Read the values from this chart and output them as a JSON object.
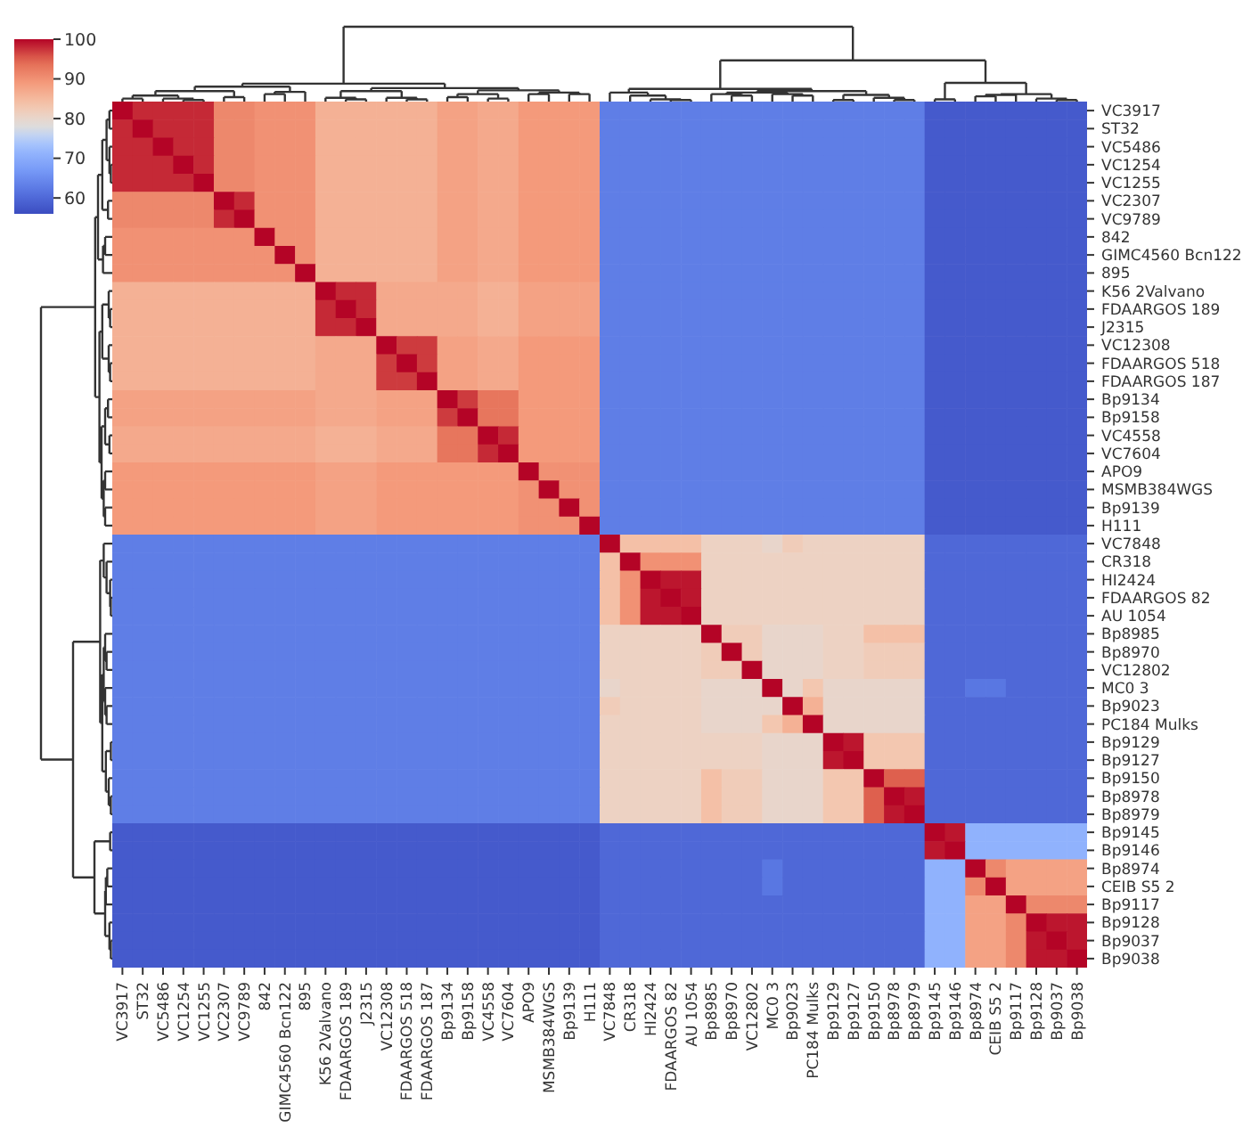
{
  "chart_data": {
    "type": "heatmap",
    "categories": [
      "VC3917",
      "ST32",
      "VC5486",
      "VC1254",
      "VC1255",
      "VC2307",
      "VC9789",
      "842",
      "GIMC4560 Bcn122",
      "895",
      "K56 2Valvano",
      "FDAARGOS 189",
      "J2315",
      "VC12308",
      "FDAARGOS 518",
      "FDAARGOS 187",
      "Bp9134",
      "Bp9158",
      "VC4558",
      "VC7604",
      "APO9",
      "MSMB384WGS",
      "Bp9139",
      "H111",
      "VC7848",
      "CR318",
      "HI2424",
      "FDAARGOS 82",
      "AU 1054",
      "Bp8985",
      "Bp8970",
      "VC12802",
      "MC0 3",
      "Bp9023",
      "PC184 Mulks",
      "Bp9129",
      "Bp9127",
      "Bp9150",
      "Bp8978",
      "Bp8979",
      "Bp9145",
      "Bp9146",
      "Bp8974",
      "CEIB S5 2",
      "Bp9117",
      "Bp9128",
      "Bp9037",
      "Bp9038"
    ],
    "y_categories": [
      "VC3917",
      "ST32",
      "VC5486",
      "VC1254",
      "VC1255",
      "VC2307",
      "VC9789",
      "842",
      "GIMC4560 Bcn122",
      "895",
      "K56 2Valvano",
      "FDAARGOS 189",
      "J2315",
      "VC12308",
      "FDAARGOS 518",
      "FDAARGOS 187",
      "Bp9134",
      "Bp9158",
      "VC4558",
      "VC7604",
      "APO9",
      "MSMB384WGS",
      "Bp9139",
      "H111",
      "VC7848",
      "CR318",
      "HI2424",
      "FDAARGOS 82",
      "AU 1054",
      "Bp8985",
      "Bp8970",
      "VC12802",
      "MC0 3",
      "Bp9023",
      "PC184 Mulks",
      "Bp9129",
      "Bp9127",
      "Bp9150",
      "Bp8978",
      "Bp8979",
      "Bp9145",
      "Bp9146",
      "Bp8974",
      "CEIB S5 2",
      "Bp9117",
      "Bp9128",
      "Bp9037",
      "Bp9038"
    ],
    "clim": [
      56,
      100
    ],
    "cticks": [
      60,
      70,
      80,
      90,
      100
    ],
    "cells": [
      [
        100,
        98,
        98,
        98,
        98,
        91,
        91,
        90,
        90,
        90,
        86,
        86,
        86,
        86,
        86,
        86,
        88,
        88,
        87,
        87,
        89,
        89,
        89,
        89,
        63,
        63,
        63,
        63,
        63,
        63,
        63,
        63,
        63,
        63,
        63,
        63,
        63,
        63,
        63,
        63,
        58,
        58,
        58,
        58,
        58,
        58,
        58,
        58
      ],
      [
        98,
        100,
        98,
        98,
        98,
        91,
        91,
        90,
        90,
        90,
        86,
        86,
        86,
        86,
        86,
        86,
        88,
        88,
        87,
        87,
        89,
        89,
        89,
        89,
        63,
        63,
        63,
        63,
        63,
        63,
        63,
        63,
        63,
        63,
        63,
        63,
        63,
        63,
        63,
        63,
        58,
        58,
        58,
        58,
        58,
        58,
        58,
        58
      ],
      [
        98,
        98,
        100,
        98,
        98,
        91,
        91,
        90,
        90,
        90,
        86,
        86,
        86,
        86,
        86,
        86,
        88,
        88,
        87,
        87,
        89,
        89,
        89,
        89,
        63,
        63,
        63,
        63,
        63,
        63,
        63,
        63,
        63,
        63,
        63,
        63,
        63,
        63,
        63,
        63,
        58,
        58,
        58,
        58,
        58,
        58,
        58,
        58
      ],
      [
        98,
        98,
        98,
        100,
        98,
        91,
        91,
        90,
        90,
        90,
        86,
        86,
        86,
        86,
        86,
        86,
        88,
        88,
        87,
        87,
        89,
        89,
        89,
        89,
        63,
        63,
        63,
        63,
        63,
        63,
        63,
        63,
        63,
        63,
        63,
        63,
        63,
        63,
        63,
        63,
        58,
        58,
        58,
        58,
        58,
        58,
        58,
        58
      ],
      [
        98,
        98,
        98,
        98,
        100,
        91,
        91,
        90,
        90,
        90,
        86,
        86,
        86,
        86,
        86,
        86,
        88,
        88,
        87,
        87,
        89,
        89,
        89,
        89,
        63,
        63,
        63,
        63,
        63,
        63,
        63,
        63,
        63,
        63,
        63,
        63,
        63,
        63,
        63,
        63,
        58,
        58,
        58,
        58,
        58,
        58,
        58,
        58
      ],
      [
        91,
        91,
        91,
        91,
        91,
        100,
        98,
        90,
        90,
        90,
        86,
        86,
        86,
        86,
        86,
        86,
        88,
        88,
        87,
        87,
        89,
        89,
        89,
        89,
        63,
        63,
        63,
        63,
        63,
        63,
        63,
        63,
        63,
        63,
        63,
        63,
        63,
        63,
        63,
        63,
        58,
        58,
        58,
        58,
        58,
        58,
        58,
        58
      ],
      [
        91,
        91,
        91,
        91,
        91,
        98,
        100,
        90,
        90,
        90,
        86,
        86,
        86,
        86,
        86,
        86,
        88,
        88,
        87,
        87,
        89,
        89,
        89,
        89,
        63,
        63,
        63,
        63,
        63,
        63,
        63,
        63,
        63,
        63,
        63,
        63,
        63,
        63,
        63,
        63,
        58,
        58,
        58,
        58,
        58,
        58,
        58,
        58
      ],
      [
        90,
        90,
        90,
        90,
        90,
        90,
        90,
        100,
        90,
        90,
        86,
        86,
        86,
        86,
        86,
        86,
        88,
        88,
        87,
        87,
        89,
        89,
        89,
        89,
        63,
        63,
        63,
        63,
        63,
        63,
        63,
        63,
        63,
        63,
        63,
        63,
        63,
        63,
        63,
        63,
        58,
        58,
        58,
        58,
        58,
        58,
        58,
        58
      ],
      [
        90,
        90,
        90,
        90,
        90,
        90,
        90,
        90,
        100,
        90,
        86,
        86,
        86,
        86,
        86,
        86,
        88,
        88,
        87,
        87,
        89,
        89,
        89,
        89,
        63,
        63,
        63,
        63,
        63,
        63,
        63,
        63,
        63,
        63,
        63,
        63,
        63,
        63,
        63,
        63,
        58,
        58,
        58,
        58,
        58,
        58,
        58,
        58
      ],
      [
        90,
        90,
        90,
        90,
        90,
        90,
        90,
        90,
        90,
        100,
        86,
        86,
        86,
        86,
        86,
        86,
        88,
        88,
        87,
        87,
        89,
        89,
        89,
        89,
        63,
        63,
        63,
        63,
        63,
        63,
        63,
        63,
        63,
        63,
        63,
        63,
        63,
        63,
        63,
        63,
        58,
        58,
        58,
        58,
        58,
        58,
        58,
        58
      ],
      [
        86,
        86,
        86,
        86,
        86,
        86,
        86,
        86,
        86,
        86,
        100,
        98,
        98,
        87,
        87,
        87,
        87,
        87,
        86,
        86,
        88,
        88,
        88,
        88,
        63,
        63,
        63,
        63,
        63,
        63,
        63,
        63,
        63,
        63,
        63,
        63,
        63,
        63,
        63,
        63,
        58,
        58,
        58,
        58,
        58,
        58,
        58,
        58
      ],
      [
        86,
        86,
        86,
        86,
        86,
        86,
        86,
        86,
        86,
        86,
        98,
        100,
        98,
        87,
        87,
        87,
        87,
        87,
        86,
        86,
        88,
        88,
        88,
        88,
        63,
        63,
        63,
        63,
        63,
        63,
        63,
        63,
        63,
        63,
        63,
        63,
        63,
        63,
        63,
        63,
        58,
        58,
        58,
        58,
        58,
        58,
        58,
        58
      ],
      [
        86,
        86,
        86,
        86,
        86,
        86,
        86,
        86,
        86,
        86,
        98,
        98,
        100,
        87,
        87,
        87,
        87,
        87,
        86,
        86,
        88,
        88,
        88,
        88,
        63,
        63,
        63,
        63,
        63,
        63,
        63,
        63,
        63,
        63,
        63,
        63,
        63,
        63,
        63,
        63,
        58,
        58,
        58,
        58,
        58,
        58,
        58,
        58
      ],
      [
        86,
        86,
        86,
        86,
        86,
        86,
        86,
        86,
        86,
        86,
        87,
        87,
        87,
        100,
        97,
        97,
        88,
        88,
        87,
        87,
        89,
        89,
        89,
        89,
        63,
        63,
        63,
        63,
        63,
        63,
        63,
        63,
        63,
        63,
        63,
        63,
        63,
        63,
        63,
        63,
        58,
        58,
        58,
        58,
        58,
        58,
        58,
        58
      ],
      [
        86,
        86,
        86,
        86,
        86,
        86,
        86,
        86,
        86,
        86,
        87,
        87,
        87,
        97,
        100,
        97,
        88,
        88,
        87,
        87,
        89,
        89,
        89,
        89,
        63,
        63,
        63,
        63,
        63,
        63,
        63,
        63,
        63,
        63,
        63,
        63,
        63,
        63,
        63,
        63,
        58,
        58,
        58,
        58,
        58,
        58,
        58,
        58
      ],
      [
        86,
        86,
        86,
        86,
        86,
        86,
        86,
        86,
        86,
        86,
        87,
        87,
        87,
        97,
        97,
        100,
        88,
        88,
        87,
        87,
        89,
        89,
        89,
        89,
        63,
        63,
        63,
        63,
        63,
        63,
        63,
        63,
        63,
        63,
        63,
        63,
        63,
        63,
        63,
        63,
        58,
        58,
        58,
        58,
        58,
        58,
        58,
        58
      ],
      [
        88,
        88,
        88,
        88,
        88,
        88,
        88,
        88,
        88,
        88,
        87,
        87,
        87,
        88,
        88,
        88,
        100,
        97,
        93,
        93,
        89,
        89,
        89,
        89,
        63,
        63,
        63,
        63,
        63,
        63,
        63,
        63,
        63,
        63,
        63,
        63,
        63,
        63,
        63,
        63,
        58,
        58,
        58,
        58,
        58,
        58,
        58,
        58
      ],
      [
        88,
        88,
        88,
        88,
        88,
        88,
        88,
        88,
        88,
        88,
        87,
        87,
        87,
        88,
        88,
        88,
        97,
        100,
        93,
        93,
        89,
        89,
        89,
        89,
        63,
        63,
        63,
        63,
        63,
        63,
        63,
        63,
        63,
        63,
        63,
        63,
        63,
        63,
        63,
        63,
        58,
        58,
        58,
        58,
        58,
        58,
        58,
        58
      ],
      [
        87,
        87,
        87,
        87,
        87,
        87,
        87,
        87,
        87,
        87,
        86,
        86,
        86,
        87,
        87,
        87,
        93,
        93,
        100,
        98,
        89,
        89,
        89,
        89,
        63,
        63,
        63,
        63,
        63,
        63,
        63,
        63,
        63,
        63,
        63,
        63,
        63,
        63,
        63,
        63,
        58,
        58,
        58,
        58,
        58,
        58,
        58,
        58
      ],
      [
        87,
        87,
        87,
        87,
        87,
        87,
        87,
        87,
        87,
        87,
        86,
        86,
        86,
        87,
        87,
        87,
        93,
        93,
        98,
        100,
        89,
        89,
        89,
        89,
        63,
        63,
        63,
        63,
        63,
        63,
        63,
        63,
        63,
        63,
        63,
        63,
        63,
        63,
        63,
        63,
        58,
        58,
        58,
        58,
        58,
        58,
        58,
        58
      ],
      [
        89,
        89,
        89,
        89,
        89,
        89,
        89,
        89,
        89,
        89,
        88,
        88,
        88,
        89,
        89,
        89,
        89,
        89,
        89,
        89,
        100,
        90,
        90,
        90,
        63,
        63,
        63,
        63,
        63,
        63,
        63,
        63,
        63,
        63,
        63,
        63,
        63,
        63,
        63,
        63,
        58,
        58,
        58,
        58,
        58,
        58,
        58,
        58
      ],
      [
        89,
        89,
        89,
        89,
        89,
        89,
        89,
        89,
        89,
        89,
        88,
        88,
        88,
        89,
        89,
        89,
        89,
        89,
        89,
        89,
        90,
        100,
        90,
        90,
        63,
        63,
        63,
        63,
        63,
        63,
        63,
        63,
        63,
        63,
        63,
        63,
        63,
        63,
        63,
        63,
        58,
        58,
        58,
        58,
        58,
        58,
        58,
        58
      ],
      [
        89,
        89,
        89,
        89,
        89,
        89,
        89,
        89,
        89,
        89,
        88,
        88,
        88,
        89,
        89,
        89,
        89,
        89,
        89,
        89,
        90,
        90,
        100,
        90,
        63,
        63,
        63,
        63,
        63,
        63,
        63,
        63,
        63,
        63,
        63,
        63,
        63,
        63,
        63,
        63,
        58,
        58,
        58,
        58,
        58,
        58,
        58,
        58
      ],
      [
        89,
        89,
        89,
        89,
        89,
        89,
        89,
        89,
        89,
        89,
        88,
        88,
        88,
        89,
        89,
        89,
        89,
        89,
        89,
        89,
        90,
        90,
        90,
        100,
        63,
        63,
        63,
        63,
        63,
        63,
        63,
        63,
        63,
        63,
        63,
        63,
        63,
        63,
        63,
        63,
        58,
        58,
        58,
        58,
        58,
        58,
        58,
        58
      ],
      [
        63,
        63,
        63,
        63,
        63,
        63,
        63,
        63,
        63,
        63,
        63,
        63,
        63,
        63,
        63,
        63,
        63,
        63,
        63,
        63,
        63,
        63,
        63,
        63,
        100,
        84,
        84,
        84,
        84,
        81,
        81,
        81,
        80,
        82,
        81,
        81,
        81,
        81,
        81,
        81,
        60,
        60,
        60,
        60,
        60,
        60,
        60,
        60
      ],
      [
        63,
        63,
        63,
        63,
        63,
        63,
        63,
        63,
        63,
        63,
        63,
        63,
        63,
        63,
        63,
        63,
        63,
        63,
        63,
        63,
        63,
        63,
        63,
        63,
        84,
        100,
        90,
        90,
        90,
        81,
        81,
        81,
        81,
        81,
        81,
        81,
        81,
        81,
        81,
        81,
        60,
        60,
        60,
        60,
        60,
        60,
        60,
        60
      ],
      [
        63,
        63,
        63,
        63,
        63,
        63,
        63,
        63,
        63,
        63,
        63,
        63,
        63,
        63,
        63,
        63,
        63,
        63,
        63,
        63,
        63,
        63,
        63,
        63,
        84,
        90,
        100,
        99,
        99,
        81,
        81,
        81,
        81,
        81,
        81,
        81,
        81,
        81,
        81,
        81,
        60,
        60,
        60,
        60,
        60,
        60,
        60,
        60
      ],
      [
        63,
        63,
        63,
        63,
        63,
        63,
        63,
        63,
        63,
        63,
        63,
        63,
        63,
        63,
        63,
        63,
        63,
        63,
        63,
        63,
        63,
        63,
        63,
        63,
        84,
        90,
        99,
        100,
        99,
        81,
        81,
        81,
        81,
        81,
        81,
        81,
        81,
        81,
        81,
        81,
        60,
        60,
        60,
        60,
        60,
        60,
        60,
        60
      ],
      [
        63,
        63,
        63,
        63,
        63,
        63,
        63,
        63,
        63,
        63,
        63,
        63,
        63,
        63,
        63,
        63,
        63,
        63,
        63,
        63,
        63,
        63,
        63,
        63,
        84,
        90,
        99,
        99,
        100,
        81,
        81,
        81,
        81,
        81,
        81,
        81,
        81,
        81,
        81,
        81,
        60,
        60,
        60,
        60,
        60,
        60,
        60,
        60
      ],
      [
        63,
        63,
        63,
        63,
        63,
        63,
        63,
        63,
        63,
        63,
        63,
        63,
        63,
        63,
        63,
        63,
        63,
        63,
        63,
        63,
        63,
        63,
        63,
        63,
        81,
        81,
        81,
        81,
        81,
        100,
        82,
        82,
        80,
        80,
        80,
        81,
        81,
        84,
        84,
        84,
        60,
        60,
        60,
        60,
        60,
        60,
        60,
        60
      ],
      [
        63,
        63,
        63,
        63,
        63,
        63,
        63,
        63,
        63,
        63,
        63,
        63,
        63,
        63,
        63,
        63,
        63,
        63,
        63,
        63,
        63,
        63,
        63,
        63,
        81,
        81,
        81,
        81,
        81,
        82,
        100,
        82,
        80,
        80,
        80,
        81,
        81,
        82,
        82,
        82,
        60,
        60,
        60,
        60,
        60,
        60,
        60,
        60
      ],
      [
        63,
        63,
        63,
        63,
        63,
        63,
        63,
        63,
        63,
        63,
        63,
        63,
        63,
        63,
        63,
        63,
        63,
        63,
        63,
        63,
        63,
        63,
        63,
        63,
        81,
        81,
        81,
        81,
        81,
        82,
        82,
        100,
        80,
        80,
        80,
        81,
        81,
        82,
        82,
        82,
        60,
        60,
        60,
        60,
        60,
        60,
        60,
        60
      ],
      [
        63,
        63,
        63,
        63,
        63,
        63,
        63,
        63,
        63,
        63,
        63,
        63,
        63,
        63,
        63,
        63,
        63,
        63,
        63,
        63,
        63,
        63,
        63,
        63,
        80,
        81,
        81,
        81,
        81,
        80,
        80,
        80,
        100,
        80,
        83,
        80,
        80,
        80,
        80,
        80,
        60,
        60,
        62,
        62,
        60,
        60,
        60,
        60
      ],
      [
        63,
        63,
        63,
        63,
        63,
        63,
        63,
        63,
        63,
        63,
        63,
        63,
        63,
        63,
        63,
        63,
        63,
        63,
        63,
        63,
        63,
        63,
        63,
        63,
        82,
        81,
        81,
        81,
        81,
        80,
        80,
        80,
        80,
        100,
        86,
        80,
        80,
        80,
        80,
        80,
        60,
        60,
        60,
        60,
        60,
        60,
        60,
        60
      ],
      [
        63,
        63,
        63,
        63,
        63,
        63,
        63,
        63,
        63,
        63,
        63,
        63,
        63,
        63,
        63,
        63,
        63,
        63,
        63,
        63,
        63,
        63,
        63,
        63,
        81,
        81,
        81,
        81,
        81,
        80,
        80,
        80,
        83,
        86,
        100,
        80,
        80,
        80,
        80,
        80,
        60,
        60,
        60,
        60,
        60,
        60,
        60,
        60
      ],
      [
        63,
        63,
        63,
        63,
        63,
        63,
        63,
        63,
        63,
        63,
        63,
        63,
        63,
        63,
        63,
        63,
        63,
        63,
        63,
        63,
        63,
        63,
        63,
        63,
        81,
        81,
        81,
        81,
        81,
        81,
        81,
        81,
        80,
        80,
        80,
        100,
        99,
        83,
        83,
        83,
        60,
        60,
        60,
        60,
        60,
        60,
        60,
        60
      ],
      [
        63,
        63,
        63,
        63,
        63,
        63,
        63,
        63,
        63,
        63,
        63,
        63,
        63,
        63,
        63,
        63,
        63,
        63,
        63,
        63,
        63,
        63,
        63,
        63,
        81,
        81,
        81,
        81,
        81,
        81,
        81,
        81,
        80,
        80,
        80,
        99,
        100,
        83,
        83,
        83,
        60,
        60,
        60,
        60,
        60,
        60,
        60,
        60
      ],
      [
        63,
        63,
        63,
        63,
        63,
        63,
        63,
        63,
        63,
        63,
        63,
        63,
        63,
        63,
        63,
        63,
        63,
        63,
        63,
        63,
        63,
        63,
        63,
        63,
        81,
        81,
        81,
        81,
        81,
        84,
        82,
        82,
        80,
        80,
        80,
        83,
        83,
        100,
        95,
        95,
        60,
        60,
        60,
        60,
        60,
        60,
        60,
        60
      ],
      [
        63,
        63,
        63,
        63,
        63,
        63,
        63,
        63,
        63,
        63,
        63,
        63,
        63,
        63,
        63,
        63,
        63,
        63,
        63,
        63,
        63,
        63,
        63,
        63,
        81,
        81,
        81,
        81,
        81,
        84,
        82,
        82,
        80,
        80,
        80,
        83,
        83,
        95,
        100,
        99,
        60,
        60,
        60,
        60,
        60,
        60,
        60,
        60
      ],
      [
        63,
        63,
        63,
        63,
        63,
        63,
        63,
        63,
        63,
        63,
        63,
        63,
        63,
        63,
        63,
        63,
        63,
        63,
        63,
        63,
        63,
        63,
        63,
        63,
        81,
        81,
        81,
        81,
        81,
        84,
        82,
        82,
        80,
        80,
        80,
        83,
        83,
        95,
        99,
        100,
        60,
        60,
        60,
        60,
        60,
        60,
        60,
        60
      ],
      [
        58,
        58,
        58,
        58,
        58,
        58,
        58,
        58,
        58,
        58,
        58,
        58,
        58,
        58,
        58,
        58,
        58,
        58,
        58,
        58,
        58,
        58,
        58,
        58,
        60,
        60,
        60,
        60,
        60,
        60,
        60,
        60,
        60,
        60,
        60,
        60,
        60,
        60,
        60,
        60,
        100,
        99,
        71,
        71,
        71,
        71,
        71,
        71
      ],
      [
        58,
        58,
        58,
        58,
        58,
        58,
        58,
        58,
        58,
        58,
        58,
        58,
        58,
        58,
        58,
        58,
        58,
        58,
        58,
        58,
        58,
        58,
        58,
        58,
        60,
        60,
        60,
        60,
        60,
        60,
        60,
        60,
        60,
        60,
        60,
        60,
        60,
        60,
        60,
        60,
        99,
        100,
        71,
        71,
        71,
        71,
        71,
        71
      ],
      [
        58,
        58,
        58,
        58,
        58,
        58,
        58,
        58,
        58,
        58,
        58,
        58,
        58,
        58,
        58,
        58,
        58,
        58,
        58,
        58,
        58,
        58,
        58,
        58,
        60,
        60,
        60,
        60,
        60,
        60,
        60,
        60,
        62,
        60,
        60,
        60,
        60,
        60,
        60,
        60,
        71,
        71,
        100,
        91,
        88,
        88,
        88,
        88
      ],
      [
        58,
        58,
        58,
        58,
        58,
        58,
        58,
        58,
        58,
        58,
        58,
        58,
        58,
        58,
        58,
        58,
        58,
        58,
        58,
        58,
        58,
        58,
        58,
        58,
        60,
        60,
        60,
        60,
        60,
        60,
        60,
        60,
        62,
        60,
        60,
        60,
        60,
        60,
        60,
        60,
        71,
        71,
        91,
        100,
        88,
        88,
        88,
        88
      ],
      [
        58,
        58,
        58,
        58,
        58,
        58,
        58,
        58,
        58,
        58,
        58,
        58,
        58,
        58,
        58,
        58,
        58,
        58,
        58,
        58,
        58,
        58,
        58,
        58,
        60,
        60,
        60,
        60,
        60,
        60,
        60,
        60,
        60,
        60,
        60,
        60,
        60,
        60,
        60,
        60,
        71,
        71,
        88,
        88,
        100,
        91,
        91,
        91
      ],
      [
        58,
        58,
        58,
        58,
        58,
        58,
        58,
        58,
        58,
        58,
        58,
        58,
        58,
        58,
        58,
        58,
        58,
        58,
        58,
        58,
        58,
        58,
        58,
        58,
        60,
        60,
        60,
        60,
        60,
        60,
        60,
        60,
        60,
        60,
        60,
        60,
        60,
        60,
        60,
        60,
        71,
        71,
        88,
        88,
        91,
        100,
        99,
        99
      ],
      [
        58,
        58,
        58,
        58,
        58,
        58,
        58,
        58,
        58,
        58,
        58,
        58,
        58,
        58,
        58,
        58,
        58,
        58,
        58,
        58,
        58,
        58,
        58,
        58,
        60,
        60,
        60,
        60,
        60,
        60,
        60,
        60,
        60,
        60,
        60,
        60,
        60,
        60,
        60,
        60,
        71,
        71,
        88,
        88,
        91,
        99,
        100,
        99
      ],
      [
        58,
        58,
        58,
        58,
        58,
        58,
        58,
        58,
        58,
        58,
        58,
        58,
        58,
        58,
        58,
        58,
        58,
        58,
        58,
        58,
        58,
        58,
        58,
        58,
        60,
        60,
        60,
        60,
        60,
        60,
        60,
        60,
        60,
        60,
        60,
        60,
        60,
        60,
        60,
        60,
        71,
        71,
        88,
        88,
        91,
        99,
        99,
        100
      ]
    ]
  }
}
